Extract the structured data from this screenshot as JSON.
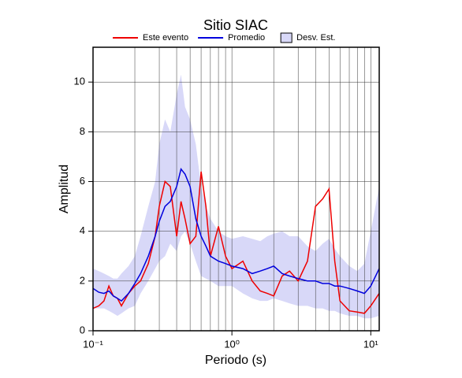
{
  "chart_data": {
    "type": "line",
    "title": "Sitio SIAC",
    "x_label": "Periodo (s)",
    "y_label": "Amplitud",
    "x": [
      0.1,
      0.11,
      0.12,
      0.13,
      0.14,
      0.15,
      0.16,
      0.18,
      0.2,
      0.22,
      0.25,
      0.28,
      0.3,
      0.33,
      0.36,
      0.4,
      0.43,
      0.46,
      0.5,
      0.55,
      0.6,
      0.65,
      0.7,
      0.8,
      0.9,
      1.0,
      1.2,
      1.4,
      1.6,
      1.8,
      2.0,
      2.3,
      2.6,
      3.0,
      3.5,
      4.0,
      4.5,
      5.0,
      5.5,
      6,
      7,
      8,
      9,
      10,
      11.5
    ],
    "series": [
      {
        "name": "Este evento",
        "color": "#ee0000",
        "values": [
          0.9,
          1.0,
          1.2,
          1.8,
          1.4,
          1.3,
          1.0,
          1.5,
          1.8,
          2.0,
          2.7,
          3.8,
          5.0,
          6.0,
          5.8,
          3.8,
          5.2,
          4.5,
          3.5,
          3.8,
          6.4,
          5.0,
          3.0,
          4.2,
          3.0,
          2.5,
          2.8,
          2.0,
          1.6,
          1.5,
          1.4,
          2.2,
          2.4,
          2.0,
          2.8,
          5.0,
          5.3,
          5.7,
          2.8,
          1.2,
          0.8,
          0.75,
          0.7,
          1.0,
          1.5
        ]
      },
      {
        "name": "Promedio",
        "color": "#0000dd",
        "values": [
          1.7,
          1.55,
          1.5,
          1.6,
          1.4,
          1.3,
          1.2,
          1.5,
          1.9,
          2.3,
          3.0,
          3.8,
          4.4,
          5.0,
          5.2,
          5.8,
          6.5,
          6.3,
          5.8,
          4.5,
          3.8,
          3.4,
          3.0,
          2.8,
          2.7,
          2.6,
          2.5,
          2.3,
          2.4,
          2.5,
          2.6,
          2.3,
          2.2,
          2.1,
          2.0,
          2.0,
          1.9,
          1.9,
          1.8,
          1.8,
          1.7,
          1.6,
          1.5,
          1.8,
          2.5
        ]
      },
      {
        "name": "Desv. Est.",
        "color": "#d8d8f8",
        "kind": "band",
        "upper": [
          2.5,
          2.4,
          2.3,
          2.2,
          2.1,
          2.1,
          2.3,
          2.6,
          3.0,
          3.8,
          5.0,
          6.0,
          7.5,
          8.5,
          8.0,
          9.5,
          10.3,
          9.0,
          8.5,
          7.5,
          5.8,
          5.0,
          4.5,
          4.0,
          3.8,
          3.7,
          3.8,
          3.7,
          3.6,
          3.8,
          3.9,
          4.0,
          3.8,
          3.8,
          3.4,
          3.2,
          3.5,
          3.7,
          3.3,
          3.0,
          2.6,
          2.4,
          2.7,
          4.0,
          5.8
        ],
        "lower": [
          0.9,
          0.9,
          0.9,
          0.8,
          0.7,
          0.6,
          0.7,
          0.9,
          1.0,
          1.5,
          2.0,
          2.5,
          2.8,
          3.0,
          3.5,
          3.2,
          3.8,
          4.0,
          3.5,
          2.8,
          2.2,
          2.1,
          2.0,
          1.8,
          1.8,
          1.8,
          1.5,
          1.3,
          1.2,
          1.2,
          1.3,
          1.2,
          1.1,
          1.0,
          1.0,
          0.9,
          0.9,
          0.8,
          0.8,
          0.7,
          0.6,
          0.6,
          0.5,
          0.5,
          0.6
        ]
      }
    ],
    "xlim": [
      0.1,
      11.5
    ],
    "ylim": [
      0,
      11.4
    ],
    "x_log": true,
    "xticks": [
      {
        "value": 0.1,
        "label": "10⁻¹"
      },
      {
        "value": 1,
        "label": "10⁰"
      },
      {
        "value": 10,
        "label": "10¹"
      }
    ],
    "yticks": [
      0,
      2,
      4,
      6,
      8,
      10
    ],
    "grid": true,
    "legend": "top"
  }
}
